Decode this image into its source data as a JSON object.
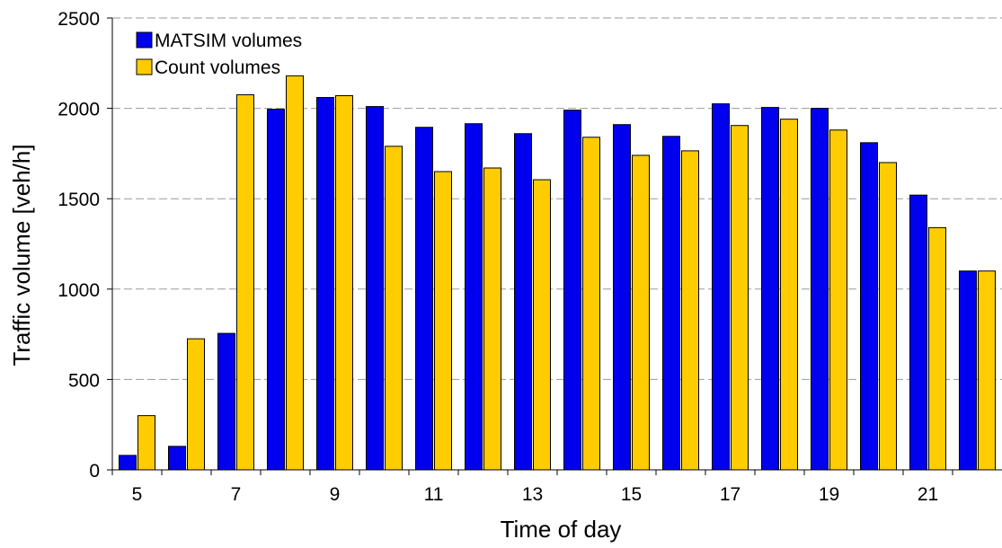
{
  "chart_data": {
    "type": "bar",
    "title": "",
    "xlabel": "Time of day",
    "ylabel": "Traffic volume [veh/h]",
    "ylim": [
      0,
      2500
    ],
    "yticks": [
      0,
      500,
      1000,
      1500,
      2000,
      2500
    ],
    "categories": [
      "5",
      "6",
      "7",
      "8",
      "9",
      "10",
      "11",
      "12",
      "13",
      "14",
      "15",
      "16",
      "17",
      "18",
      "19",
      "20",
      "21",
      "22"
    ],
    "x_tick_labels": [
      "5",
      "",
      "7",
      "",
      "9",
      "",
      "11",
      "",
      "13",
      "",
      "15",
      "",
      "17",
      "",
      "19",
      "",
      "21",
      ""
    ],
    "grid": "horizontal-dashed",
    "legend_position": "top-left",
    "series": [
      {
        "name": "MATSIM volumes",
        "color": "#0000ee",
        "values": [
          80,
          130,
          755,
          1995,
          2060,
          2010,
          1895,
          1915,
          1860,
          1990,
          1910,
          1845,
          2025,
          2005,
          2000,
          1810,
          1520,
          1100
        ]
      },
      {
        "name": "Count volumes",
        "color": "#ffcc00",
        "values": [
          300,
          725,
          2075,
          2180,
          2070,
          1790,
          1650,
          1670,
          1605,
          1840,
          1740,
          1765,
          1905,
          1940,
          1880,
          1700,
          1340,
          1100
        ]
      }
    ]
  }
}
